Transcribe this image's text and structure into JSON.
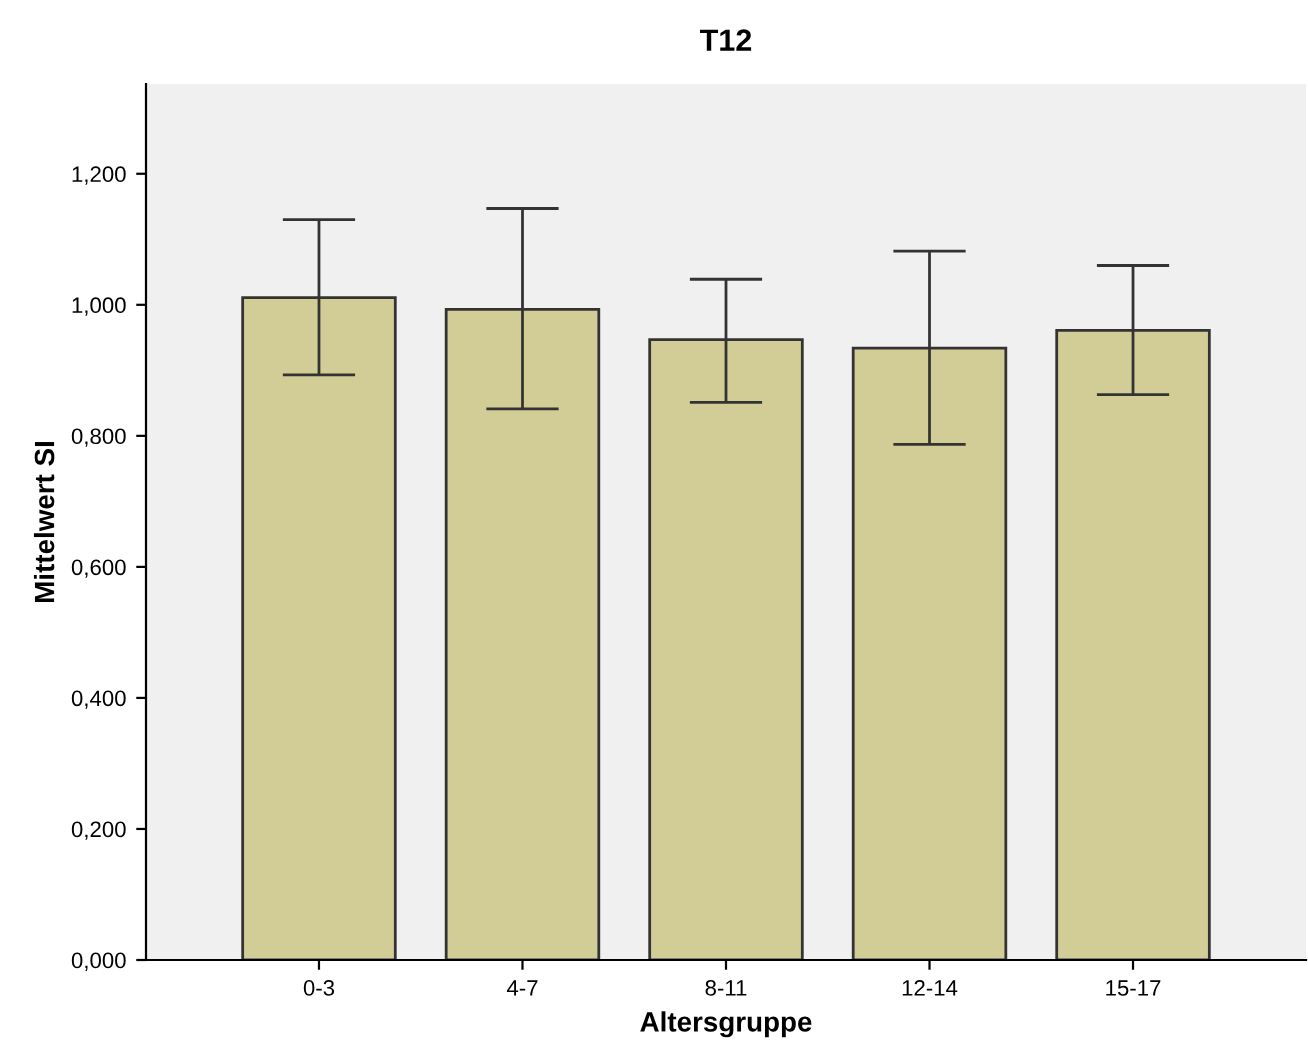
{
  "chart_data": {
    "type": "bar",
    "title": "T12",
    "xlabel": "Altersgruppe",
    "ylabel": "Mittelwert SI",
    "categories": [
      "0-3",
      "4-7",
      "8-11",
      "12-14",
      "15-17"
    ],
    "values": [
      1.011,
      0.993,
      0.947,
      0.934,
      0.961
    ],
    "errors": [
      [
        0.893,
        1.13
      ],
      [
        0.841,
        1.147
      ],
      [
        0.851,
        1.039
      ],
      [
        0.787,
        1.082
      ],
      [
        0.863,
        1.06
      ]
    ],
    "color": "#d2cd96",
    "ylim": [
      0,
      1.337
    ],
    "yticks": [
      {
        "value": 0,
        "label": "0,000"
      },
      {
        "value": 0.2,
        "label": "0,200"
      },
      {
        "value": 0.4,
        "label": "0,400"
      },
      {
        "value": 0.6,
        "label": "0,600"
      },
      {
        "value": 0.8,
        "label": "0,800"
      },
      {
        "value": 1.0,
        "label": "1,000"
      },
      {
        "value": 1.2,
        "label": "1,200"
      }
    ],
    "grid": false,
    "legend": false
  }
}
